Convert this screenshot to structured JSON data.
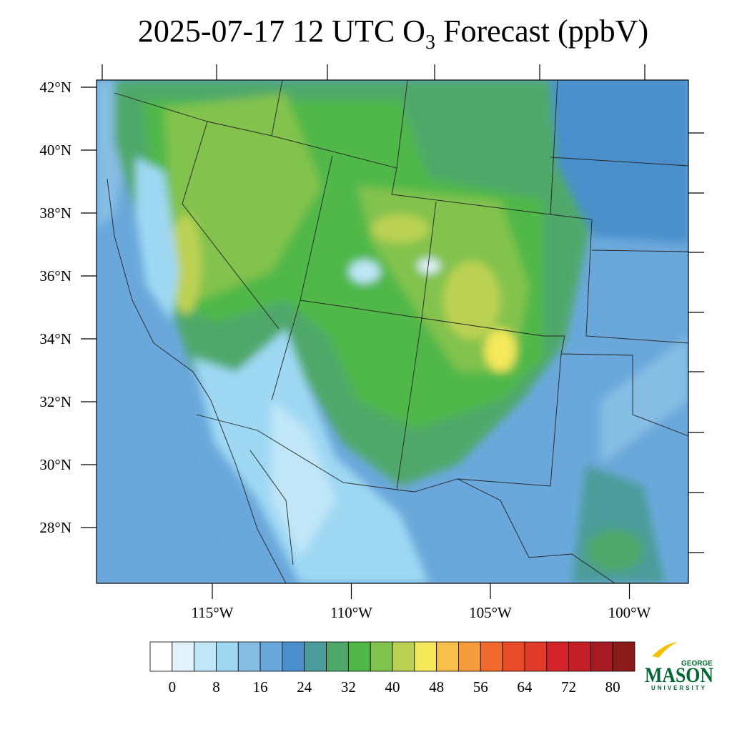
{
  "title": {
    "text_before": "2025-07-17 12 UTC O",
    "subscript": "3",
    "text_after": "Forecast (ppbV)"
  },
  "lat_ticks": [
    {
      "value": 42,
      "label": "42°N"
    },
    {
      "value": 40,
      "label": "40°N"
    },
    {
      "value": 38,
      "label": "38°N"
    },
    {
      "value": 36,
      "label": "36°N"
    },
    {
      "value": 34,
      "label": "34°N"
    },
    {
      "value": 32,
      "label": "32°N"
    },
    {
      "value": 30,
      "label": "30°N"
    },
    {
      "value": 28,
      "label": "28°N"
    }
  ],
  "lon_ticks": [
    {
      "value": -115,
      "label": "115°W"
    },
    {
      "value": -110,
      "label": "110°W"
    },
    {
      "value": -105,
      "label": "105°W"
    },
    {
      "value": -100,
      "label": "100°W"
    }
  ],
  "colorbar": {
    "ticks": [
      0,
      8,
      16,
      24,
      32,
      40,
      48,
      56,
      64,
      72,
      80
    ],
    "colors": [
      "#ffffff",
      "#e1f2fb",
      "#c0e6f7",
      "#9fd8f3",
      "#86bde3",
      "#6aa8db",
      "#4a8fcb",
      "#4b9c9a",
      "#4fa86a",
      "#4fb848",
      "#82c24e",
      "#bcd152",
      "#f5e85a",
      "#f8c04a",
      "#f59b3a",
      "#ef6a2c",
      "#e94a28",
      "#e03a29",
      "#d52429",
      "#c21f26",
      "#a61b21",
      "#8b1a1a"
    ]
  },
  "logo": {
    "top": "GEORGE",
    "main": "MASON",
    "bottom": "UNIVERSITY"
  }
}
